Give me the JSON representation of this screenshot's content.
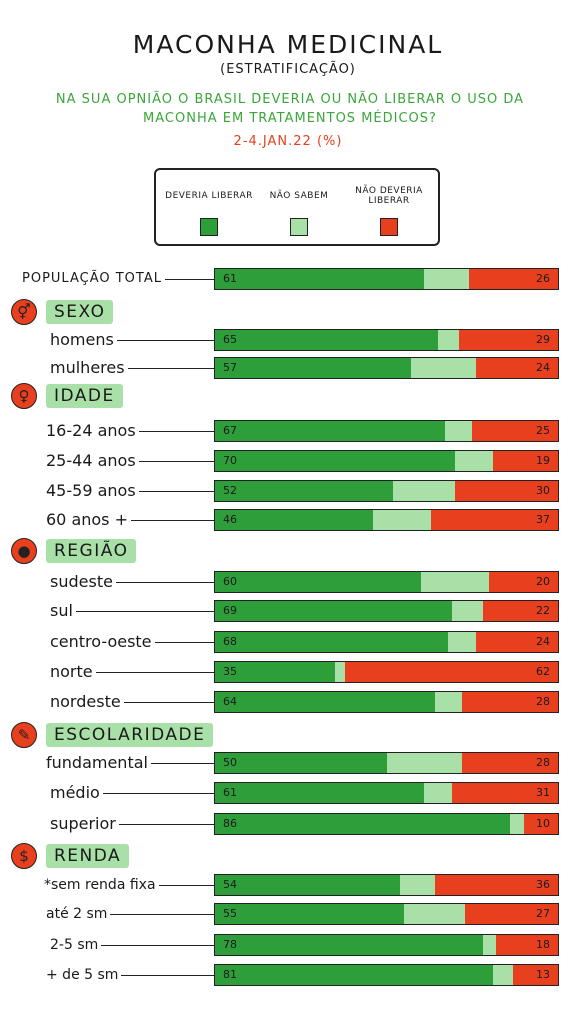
{
  "title": "MACONHA MEDICINAL",
  "subtitle": "(ESTRATIFICAÇÃO)",
  "question": "NA SUA OPNIÃO O BRASIL DEVERIA OU NÃO LIBERAR O USO DA MACONHA EM TRATAMENTOS MÉDICOS?",
  "date": "2-4.JAN.22 (%)",
  "colors": {
    "deveria": "#2e9e3a",
    "nao_sabem": "#a8e0a8",
    "nao_deveria": "#e8401e",
    "accent": "#e8401e"
  },
  "legend": [
    {
      "label": "DEVERIA LIBERAR",
      "color": "#2e9e3a"
    },
    {
      "label": "NÃO SABEM",
      "color": "#a8e0a8"
    },
    {
      "label": "NÃO DEVERIA LIBERAR",
      "color": "#e8401e"
    }
  ],
  "sections": [
    {
      "title": "SEXO",
      "icon": "gender-icon",
      "glyph": "⚥"
    },
    {
      "title": "IDADE",
      "icon": "person-icon",
      "glyph": "♀"
    },
    {
      "title": "REGIÃO",
      "icon": "brazil-map-icon",
      "glyph": "●"
    },
    {
      "title": "ESCOLARIDADE",
      "icon": "pencil-icon",
      "glyph": "✎"
    },
    {
      "title": "RENDA",
      "icon": "money-icon",
      "glyph": "$"
    }
  ],
  "chart_data": {
    "type": "bar",
    "orientation": "horizontal-stacked-100",
    "categories": [
      "POPULAÇÃO TOTAL",
      "homens",
      "mulheres",
      "16-24 anos",
      "25-44 anos",
      "45-59 anos",
      "60 anos +",
      "sudeste",
      "sul",
      "centro-oeste",
      "norte",
      "nordeste",
      "fundamental",
      "médio",
      "superior",
      "*sem renda fixa",
      "até 2 sm",
      "2-5 sm",
      "+ de 5 sm"
    ],
    "series": [
      {
        "name": "DEVERIA LIBERAR",
        "values": [
          61,
          65,
          57,
          67,
          70,
          52,
          46,
          60,
          69,
          68,
          35,
          64,
          50,
          61,
          86,
          54,
          55,
          78,
          81
        ]
      },
      {
        "name": "NÃO SABEM",
        "values": [
          13,
          6,
          19,
          8,
          11,
          18,
          17,
          20,
          9,
          8,
          3,
          8,
          22,
          8,
          4,
          10,
          18,
          4,
          6
        ]
      },
      {
        "name": "NÃO DEVERIA LIBERAR",
        "values": [
          26,
          29,
          24,
          25,
          19,
          30,
          37,
          20,
          22,
          24,
          62,
          28,
          28,
          31,
          10,
          36,
          27,
          18,
          13
        ]
      }
    ],
    "xlim": [
      0,
      100
    ]
  }
}
